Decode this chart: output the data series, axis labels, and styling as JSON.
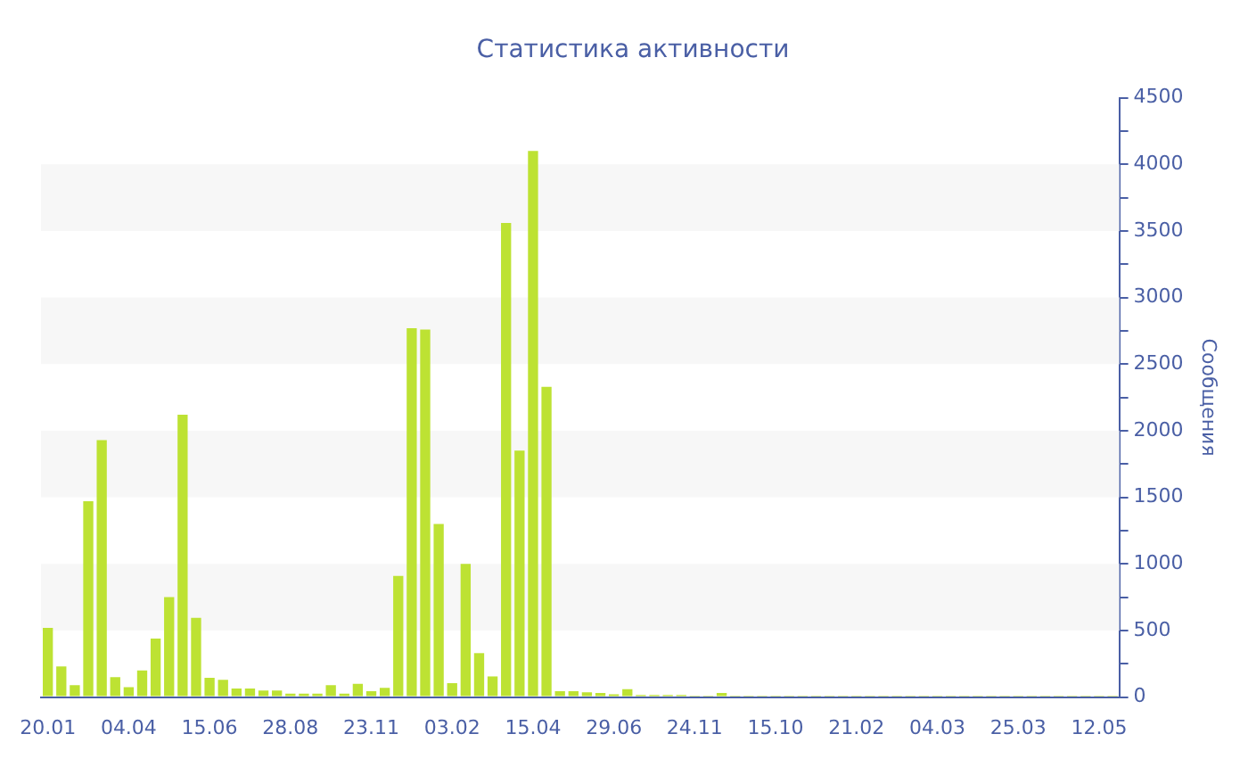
{
  "chart_data": {
    "type": "bar",
    "title": "Статистика активности",
    "ylabel": "Сообщения",
    "categories": [
      "20.01",
      null,
      null,
      null,
      null,
      null,
      "04.04",
      null,
      null,
      null,
      null,
      null,
      "15.06",
      null,
      null,
      null,
      null,
      null,
      "28.08",
      null,
      null,
      null,
      null,
      null,
      "23.11",
      null,
      null,
      null,
      null,
      null,
      "03.02",
      null,
      null,
      null,
      null,
      null,
      "15.04",
      null,
      null,
      null,
      null,
      null,
      "29.06",
      null,
      null,
      null,
      null,
      null,
      "24.11",
      null,
      null,
      null,
      null,
      null,
      "15.10",
      null,
      null,
      null,
      null,
      null,
      "21.02",
      null,
      null,
      null,
      null,
      null,
      "04.03",
      null,
      null,
      null,
      null,
      null,
      "25.03",
      null,
      null,
      null,
      null,
      null,
      "12.05",
      null
    ],
    "values": [
      520,
      230,
      90,
      1470,
      1930,
      150,
      75,
      200,
      440,
      750,
      2120,
      595,
      145,
      130,
      65,
      65,
      50,
      50,
      25,
      25,
      25,
      90,
      25,
      100,
      45,
      70,
      910,
      2770,
      2760,
      1300,
      105,
      1000,
      330,
      155,
      3560,
      1850,
      4100,
      2330,
      45,
      45,
      35,
      30,
      20,
      60,
      15,
      15,
      15,
      15,
      10,
      10,
      30,
      10,
      10,
      10,
      10,
      10,
      10,
      10,
      10,
      10,
      10,
      10,
      10,
      10,
      10,
      10,
      10,
      10,
      10,
      10,
      10,
      10,
      10,
      10,
      10,
      10,
      10,
      10,
      10,
      10
    ],
    "color": "#bde233",
    "ylim": [
      0,
      4500
    ],
    "yticks": [
      0,
      {
        "value": 250,
        "label": null
      },
      500,
      {
        "value": 750,
        "label": null
      },
      1000,
      {
        "value": 1250,
        "label": null
      },
      1500,
      {
        "value": 1750,
        "label": null
      },
      2000,
      {
        "value": 2250,
        "label": null
      },
      2500,
      {
        "value": 2750,
        "label": null
      },
      3000,
      {
        "value": 3250,
        "label": null
      },
      3500,
      {
        "value": 3750,
        "label": null
      },
      4000,
      {
        "value": 4250,
        "label": null
      },
      4500
    ],
    "bands": [
      {
        "axis": "y",
        "from": 500,
        "to": 1000,
        "color": "#f7f7f7"
      },
      {
        "axis": "y",
        "from": 1500,
        "to": 2000,
        "color": "#f7f7f7"
      },
      {
        "axis": "y",
        "from": 2500,
        "to": 3000,
        "color": "#f7f7f7"
      },
      {
        "axis": "y",
        "from": 3500,
        "to": 4000,
        "color": "#f7f7f7"
      }
    ],
    "grid": false
  }
}
